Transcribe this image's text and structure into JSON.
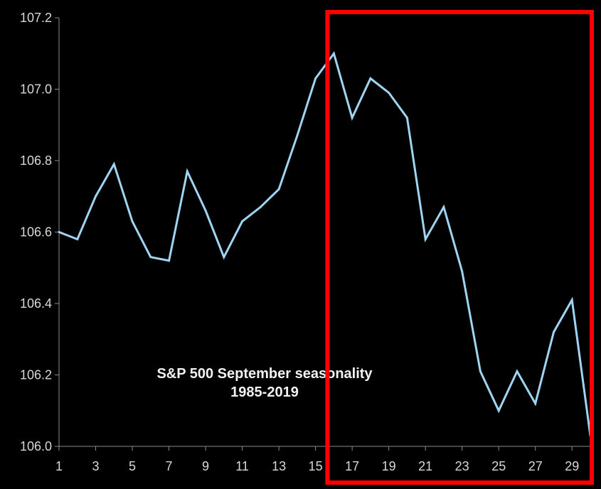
{
  "chart_data": {
    "type": "line",
    "title": "S&P 500 September seasonality",
    "subtitle": "1985-2019",
    "xlabel": "",
    "ylabel": "",
    "x": [
      1,
      2,
      3,
      4,
      5,
      6,
      7,
      8,
      9,
      10,
      11,
      12,
      13,
      14,
      15,
      16,
      17,
      18,
      19,
      20,
      21,
      22,
      23,
      24,
      25,
      26,
      27,
      28,
      29,
      30
    ],
    "xlim": [
      1,
      30
    ],
    "ylim": [
      106.0,
      107.2
    ],
    "x_tick_labels": [
      "1",
      "3",
      "5",
      "7",
      "9",
      "11",
      "13",
      "15",
      "17",
      "19",
      "21",
      "23",
      "25",
      "27",
      "29"
    ],
    "x_tick_values": [
      1,
      3,
      5,
      7,
      9,
      11,
      13,
      15,
      17,
      19,
      21,
      23,
      25,
      27,
      29
    ],
    "y_tick_labels": [
      "106.0",
      "106.2",
      "106.4",
      "106.6",
      "106.8",
      "107.0",
      "107.2"
    ],
    "y_tick_values": [
      106.0,
      106.2,
      106.4,
      106.6,
      106.8,
      107.0,
      107.2
    ],
    "grid": false,
    "legend": "none",
    "series": [
      {
        "values": [
          106.6,
          106.58,
          106.7,
          106.79,
          106.63,
          106.53,
          106.52,
          106.77,
          106.66,
          106.53,
          106.63,
          106.67,
          106.72,
          106.87,
          107.03,
          107.1,
          106.92,
          107.03,
          106.99,
          106.92,
          106.58,
          106.67,
          106.49,
          106.21,
          106.1,
          106.21,
          106.12,
          106.32,
          106.41,
          106.03
        ],
        "color": "#9fd4f2"
      }
    ],
    "highlight": {
      "x_from": 16,
      "x_to": 30,
      "color": "#ff0000"
    },
    "colors": {
      "background": "#000000",
      "axis": "#8c8c8c",
      "text": "#d8d8d8"
    }
  }
}
